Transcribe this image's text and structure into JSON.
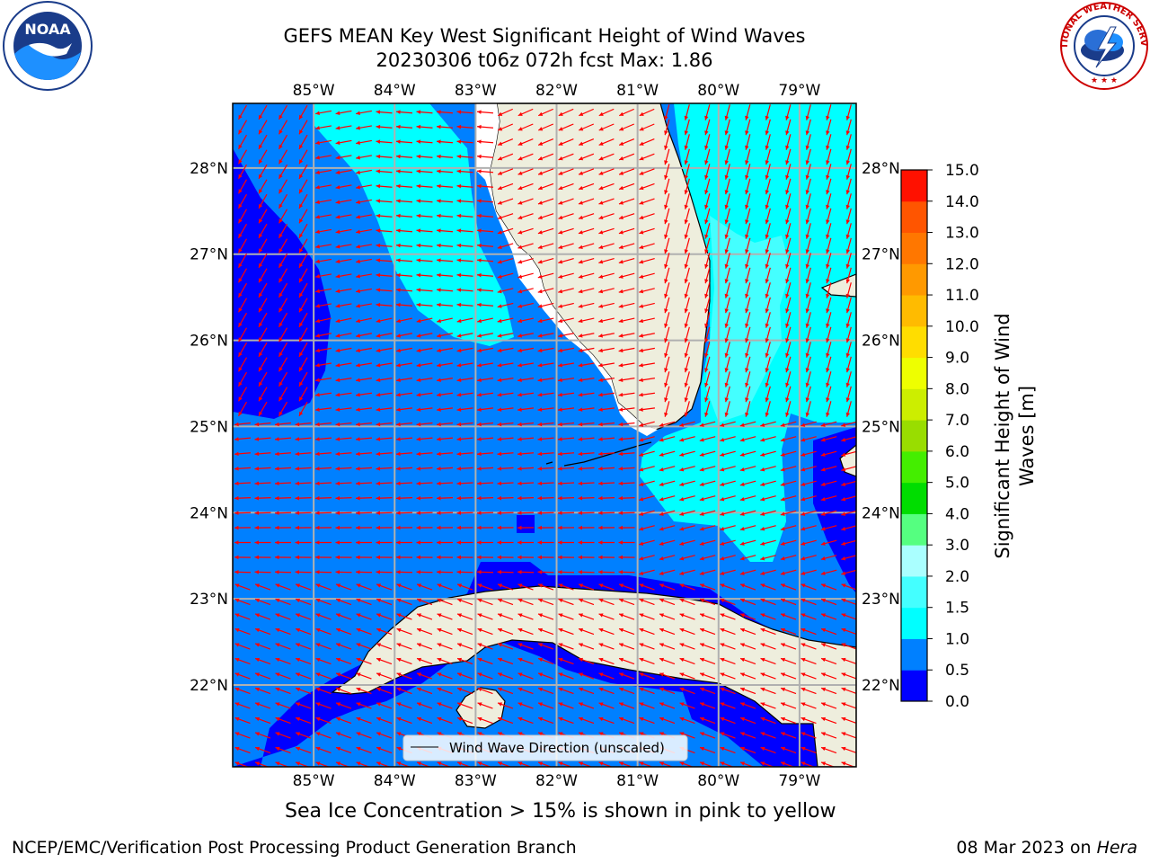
{
  "header": {
    "title_line1": "GEFS MEAN Key West Significant Height of Wind Waves",
    "title_line2": "20230306 t06z 072h fcst   Max: 1.86"
  },
  "logos": {
    "left": {
      "name": "noaa-logo",
      "text": "NOAA"
    },
    "right": {
      "name": "nws-logo",
      "ring_text": "NATIONAL WEATHER SERVICE"
    }
  },
  "map": {
    "lon_ticks": [
      "85°W",
      "84°W",
      "83°W",
      "82°W",
      "81°W",
      "80°W",
      "79°W"
    ],
    "lat_ticks": [
      "28°N",
      "27°N",
      "26°N",
      "25°N",
      "24°N",
      "23°N",
      "22°N"
    ],
    "lon_values": [
      -85,
      -84,
      -83,
      -82,
      -81,
      -80,
      -79
    ],
    "lat_values": [
      28,
      27,
      26,
      25,
      24,
      23,
      22
    ],
    "lon_range": [
      -86,
      -78.3
    ],
    "lat_range": [
      21.05,
      28.75
    ],
    "grid": true,
    "legend_label": "Wind Wave Direction (unscaled)",
    "legend_placement": "bottom-center",
    "colors": {
      "land": "#eeeedd",
      "coast": "#000000",
      "grid": "#b0b0b0",
      "arrow": "#ff0000",
      "frame": "#000000"
    }
  },
  "colorbar": {
    "label_line1": "Significant Height of Wind",
    "label_line2": "Waves [m]",
    "tick_labels": [
      "0.0",
      "0.5",
      "1.0",
      "1.5",
      "2.0",
      "3.0",
      "4.0",
      "5.0",
      "6.0",
      "7.0",
      "8.0",
      "9.0",
      "10.0",
      "11.0",
      "12.0",
      "13.0",
      "14.0",
      "15.0"
    ],
    "colors": [
      "#0000ff",
      "#0080ff",
      "#00ffff",
      "#44ffff",
      "#aaffff",
      "#55ff80",
      "#00dd00",
      "#44ee00",
      "#99dd00",
      "#ccee00",
      "#eeff00",
      "#ffdd00",
      "#ffbb00",
      "#ff9900",
      "#ff7700",
      "#ff5500",
      "#ff1100"
    ]
  },
  "chart_data": {
    "type": "heatmap",
    "title": "GEFS MEAN Key West Significant Height of Wind Waves",
    "subtitle": "20230306 t06z 072h fcst   Max: 1.86",
    "variable": "Significant Height of Wind Waves [m]",
    "max": 1.86,
    "colorbar_levels": [
      0.0,
      0.5,
      1.0,
      1.5,
      2.0,
      3.0,
      4.0,
      5.0,
      6.0,
      7.0,
      8.0,
      9.0,
      10.0,
      11.0,
      12.0,
      13.0,
      14.0,
      15.0
    ],
    "regions": [
      {
        "value_range": [
          0.0,
          0.5
        ],
        "color": "#0000ff"
      },
      {
        "value_range": [
          0.5,
          1.0
        ],
        "color": "#0080ff"
      },
      {
        "value_range": [
          1.0,
          1.5
        ],
        "color": "#00ffff"
      },
      {
        "value_range": [
          1.5,
          2.0
        ],
        "color": "#44ffff"
      }
    ],
    "xlim": [
      -86,
      -78.3
    ],
    "ylim": [
      21.05,
      28.75
    ]
  },
  "captions": {
    "ice_note": "Sea Ice Concentration > 15% is shown in pink to yellow",
    "footer_left": "NCEP/EMC/Verification Post Processing Product Generation Branch",
    "footer_right_date": "08 Mar 2023 on ",
    "footer_right_host": "Hera"
  }
}
